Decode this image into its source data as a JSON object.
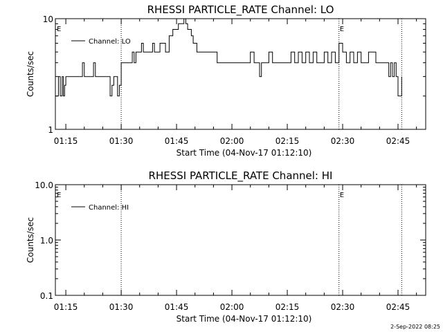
{
  "chart_data": [
    {
      "type": "line",
      "title": "RHESSI PARTICLE_RATE Channel: LO",
      "xlabel": "Start Time (04-Nov-17 01:12:10)",
      "ylabel": "Counts/sec",
      "yscale": "log",
      "ylim": [
        1,
        10
      ],
      "yticks": [
        1,
        10
      ],
      "ytick_labels": [
        "1",
        "10"
      ],
      "xlim": [
        "01:12:10",
        "02:52:30"
      ],
      "xticks": [
        "01:15",
        "01:30",
        "01:45",
        "02:00",
        "02:15",
        "02:30",
        "02:45"
      ],
      "legend": {
        "position": "top-left",
        "label": "Channel: LO"
      },
      "grid": false,
      "markers": [
        {
          "time": "01:30",
          "flag": ""
        },
        {
          "time": "02:29",
          "flag": "E"
        },
        {
          "time": "02:46",
          "flag": ""
        }
      ],
      "start_flag": "E",
      "series": [
        {
          "name": "Channel: LO",
          "color": "#000000",
          "x": [
            "01:12:10",
            "01:13:00",
            "01:13:30",
            "01:14:00",
            "01:14:20",
            "01:14:40",
            "01:15:00",
            "01:15:30",
            "01:16:00",
            "01:17:00",
            "01:18:00",
            "01:19:00",
            "01:19:30",
            "01:20:00",
            "01:21:00",
            "01:22:00",
            "01:22:30",
            "01:23:00",
            "01:23:30",
            "01:24:00",
            "01:25:00",
            "01:26:00",
            "01:27:00",
            "01:27:30",
            "01:28:00",
            "01:28:30",
            "01:29:00",
            "01:29:30",
            "01:30:00",
            "01:30:30",
            "01:31:00",
            "01:32:00",
            "01:33:00",
            "01:33:30",
            "01:34:00",
            "01:35:00",
            "01:35:30",
            "01:36:00",
            "01:37:00",
            "01:38:00",
            "01:38:30",
            "01:39:00",
            "01:40:00",
            "01:40:30",
            "01:41:00",
            "01:42:00",
            "01:43:00",
            "01:44:00",
            "01:45:00",
            "01:45:30",
            "01:46:00",
            "01:47:00",
            "01:47:30",
            "01:48:00",
            "01:49:00",
            "01:49:30",
            "01:50:00",
            "01:50:30",
            "01:51:00",
            "01:52:00",
            "01:53:00",
            "01:54:00",
            "01:55:00",
            "01:56:00",
            "01:57:00",
            "01:58:00",
            "01:59:00",
            "02:00:00",
            "02:01:00",
            "02:02:00",
            "02:03:00",
            "02:04:00",
            "02:05:00",
            "02:06:00",
            "02:07:00",
            "02:07:30",
            "02:08:00",
            "02:09:00",
            "02:10:00",
            "02:11:00",
            "02:12:00",
            "02:13:00",
            "02:14:00",
            "02:15:00",
            "02:16:00",
            "02:17:00",
            "02:18:00",
            "02:19:00",
            "02:20:00",
            "02:21:00",
            "02:22:00",
            "02:23:00",
            "02:24:00",
            "02:25:00",
            "02:26:00",
            "02:27:00",
            "02:28:00",
            "02:29:00",
            "02:30:00",
            "02:31:00",
            "02:32:00",
            "02:33:00",
            "02:34:00",
            "02:35:00",
            "02:36:00",
            "02:37:00",
            "02:38:00",
            "02:39:00",
            "02:40:00",
            "02:41:00",
            "02:42:00",
            "02:42:30",
            "02:43:00",
            "02:43:30",
            "02:44:00",
            "02:44:30",
            "02:45:00",
            "02:46:00"
          ],
          "values": [
            2,
            3,
            2,
            3,
            2,
            2.5,
            3,
            3,
            3,
            3,
            3,
            3,
            4,
            3,
            3,
            3,
            4,
            3,
            3,
            3,
            3,
            3,
            2,
            2.5,
            3,
            3,
            2,
            2.5,
            4,
            4,
            4,
            4,
            5,
            4,
            5,
            5,
            6,
            5,
            5,
            5,
            6,
            5,
            5,
            6,
            6,
            5,
            7,
            8,
            8,
            9,
            9,
            10,
            9,
            8,
            7,
            6,
            6,
            5,
            5,
            5,
            5,
            5,
            5,
            4,
            4,
            4,
            4,
            4,
            4,
            4,
            4,
            4,
            5,
            4,
            4,
            3,
            4,
            4,
            5,
            4,
            4,
            4,
            4,
            4,
            5,
            4,
            5,
            4,
            5,
            4,
            5,
            4,
            4,
            5,
            4,
            5,
            4,
            6,
            5,
            4,
            5,
            4,
            5,
            4,
            4,
            5,
            5,
            4,
            4,
            4,
            4,
            3,
            4,
            3,
            4,
            3,
            2,
            3
          ]
        }
      ]
    },
    {
      "type": "line",
      "title": "RHESSI PARTICLE_RATE Channel: HI",
      "xlabel": "Start Time (04-Nov-17 01:12:10)",
      "ylabel": "Counts/sec",
      "yscale": "log",
      "ylim": [
        0.1,
        10
      ],
      "yticks": [
        0.1,
        1,
        10
      ],
      "ytick_labels": [
        "0.1",
        "1.0",
        "10.0"
      ],
      "xlim": [
        "01:12:10",
        "02:52:30"
      ],
      "xticks": [
        "01:15",
        "01:30",
        "01:45",
        "02:00",
        "02:15",
        "02:30",
        "02:45"
      ],
      "legend": {
        "position": "top-left",
        "label": "Channel: HI"
      },
      "grid": false,
      "markers": [
        {
          "time": "01:30",
          "flag": ""
        },
        {
          "time": "02:29",
          "flag": "E"
        },
        {
          "time": "02:46",
          "flag": ""
        }
      ],
      "start_flag": "E",
      "series": [
        {
          "name": "Channel: HI",
          "color": "#000000",
          "x": [],
          "values": []
        }
      ]
    }
  ],
  "footer": {
    "stamp": "2-Sep-2022 08:25"
  }
}
